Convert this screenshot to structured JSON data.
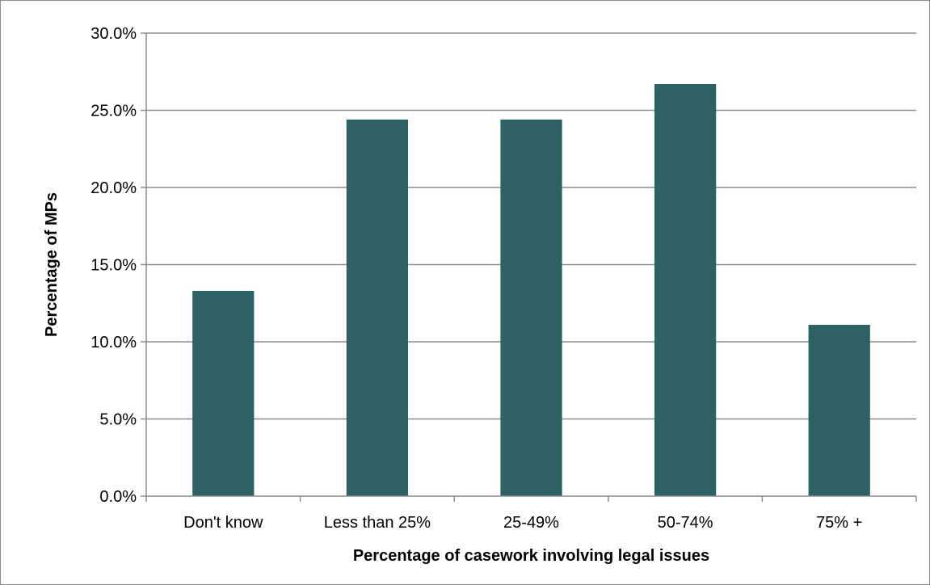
{
  "chart_data": {
    "type": "bar",
    "title": "",
    "xlabel": "Percentage of casework involving legal issues",
    "ylabel": "Percentage of MPs",
    "categories": [
      "Don't know",
      "Less than 25%",
      "25-49%",
      "50-74%",
      "75% +"
    ],
    "values": [
      13.3,
      24.4,
      24.4,
      26.7,
      11.1
    ],
    "ylim": [
      0,
      30
    ],
    "ytick_values": [
      0,
      5,
      10,
      15,
      20,
      25,
      30
    ],
    "ytick_labels": [
      "0.0%",
      "5.0%",
      "10.0%",
      "15.0%",
      "20.0%",
      "25.0%",
      "30.0%"
    ],
    "grid": true,
    "legend": "none",
    "bar_color": "#2d6163",
    "grid_color": "#8c8c8c"
  }
}
